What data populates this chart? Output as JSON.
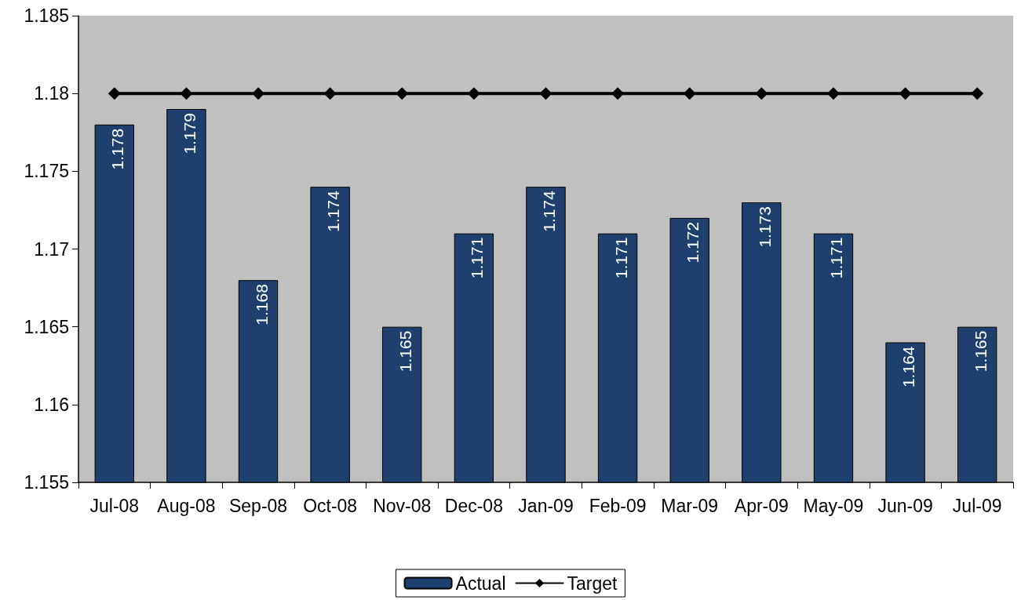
{
  "chart_data": {
    "type": "bar",
    "categories": [
      "Jul-08",
      "Aug-08",
      "Sep-08",
      "Oct-08",
      "Nov-08",
      "Dec-08",
      "Jan-09",
      "Feb-09",
      "Mar-09",
      "Apr-09",
      "May-09",
      "Jun-09",
      "Jul-09"
    ],
    "series": [
      {
        "name": "Actual",
        "color": "#1f3f6e",
        "data_labels": true,
        "values": [
          1.178,
          1.179,
          1.168,
          1.174,
          1.165,
          1.171,
          1.174,
          1.171,
          1.172,
          1.173,
          1.171,
          1.164,
          1.165
        ]
      },
      {
        "name": "Target",
        "type": "line",
        "color": "#000000",
        "marker": "diamond",
        "line_style": "solid",
        "values": [
          1.18,
          1.18,
          1.18,
          1.18,
          1.18,
          1.18,
          1.18,
          1.18,
          1.18,
          1.18,
          1.18,
          1.18,
          1.18
        ]
      }
    ],
    "ylim": [
      1.155,
      1.185
    ],
    "yticks": [
      1.155,
      1.16,
      1.165,
      1.17,
      1.175,
      1.18,
      1.185
    ],
    "grid": false,
    "legend": "bottom"
  }
}
